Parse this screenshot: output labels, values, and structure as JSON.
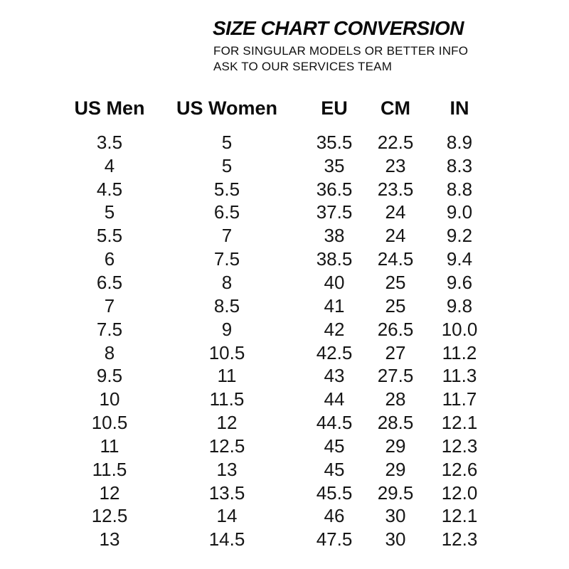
{
  "chart_data": {
    "type": "table",
    "title": "SIZE CHART CONVERSION",
    "subtitle_lines": [
      "FOR SINGULAR MODELS OR BETTER INFO",
      "ASK TO OUR SERVICES TEAM"
    ],
    "columns": [
      "US Men",
      "US Women",
      "EU",
      "CM",
      "IN"
    ],
    "rows": [
      [
        "3.5",
        "5",
        "35.5",
        "22.5",
        "8.9"
      ],
      [
        "4",
        "5",
        "35",
        "23",
        "8.3"
      ],
      [
        "4.5",
        "5.5",
        "36.5",
        "23.5",
        "8.8"
      ],
      [
        "5",
        "6.5",
        "37.5",
        "24",
        "9.0"
      ],
      [
        "5.5",
        "7",
        "38",
        "24",
        "9.2"
      ],
      [
        "6",
        "7.5",
        "38.5",
        "24.5",
        "9.4"
      ],
      [
        "6.5",
        "8",
        "40",
        "25",
        "9.6"
      ],
      [
        "7",
        "8.5",
        "41",
        "25",
        "9.8"
      ],
      [
        "7.5",
        "9",
        "42",
        "26.5",
        "10.0"
      ],
      [
        "8",
        "10.5",
        "42.5",
        "27",
        "11.2"
      ],
      [
        "9.5",
        "11",
        "43",
        "27.5",
        "11.3"
      ],
      [
        "10",
        "11.5",
        "44",
        "28",
        "11.7"
      ],
      [
        "10.5",
        "12",
        "44.5",
        "28.5",
        "12.1"
      ],
      [
        "11",
        "12.5",
        "45",
        "29",
        "12.3"
      ],
      [
        "11.5",
        "13",
        "45",
        "29",
        "12.6"
      ],
      [
        "12",
        "13.5",
        "45.5",
        "29.5",
        "12.0"
      ],
      [
        "12.5",
        "14",
        "46",
        "30",
        "12.1"
      ],
      [
        "13",
        "14.5",
        "47.5",
        "30",
        "12.3"
      ]
    ],
    "layout": {
      "legend": "none",
      "grid": false
    },
    "colors": {
      "text": "#151515",
      "background": "#ffffff"
    }
  }
}
